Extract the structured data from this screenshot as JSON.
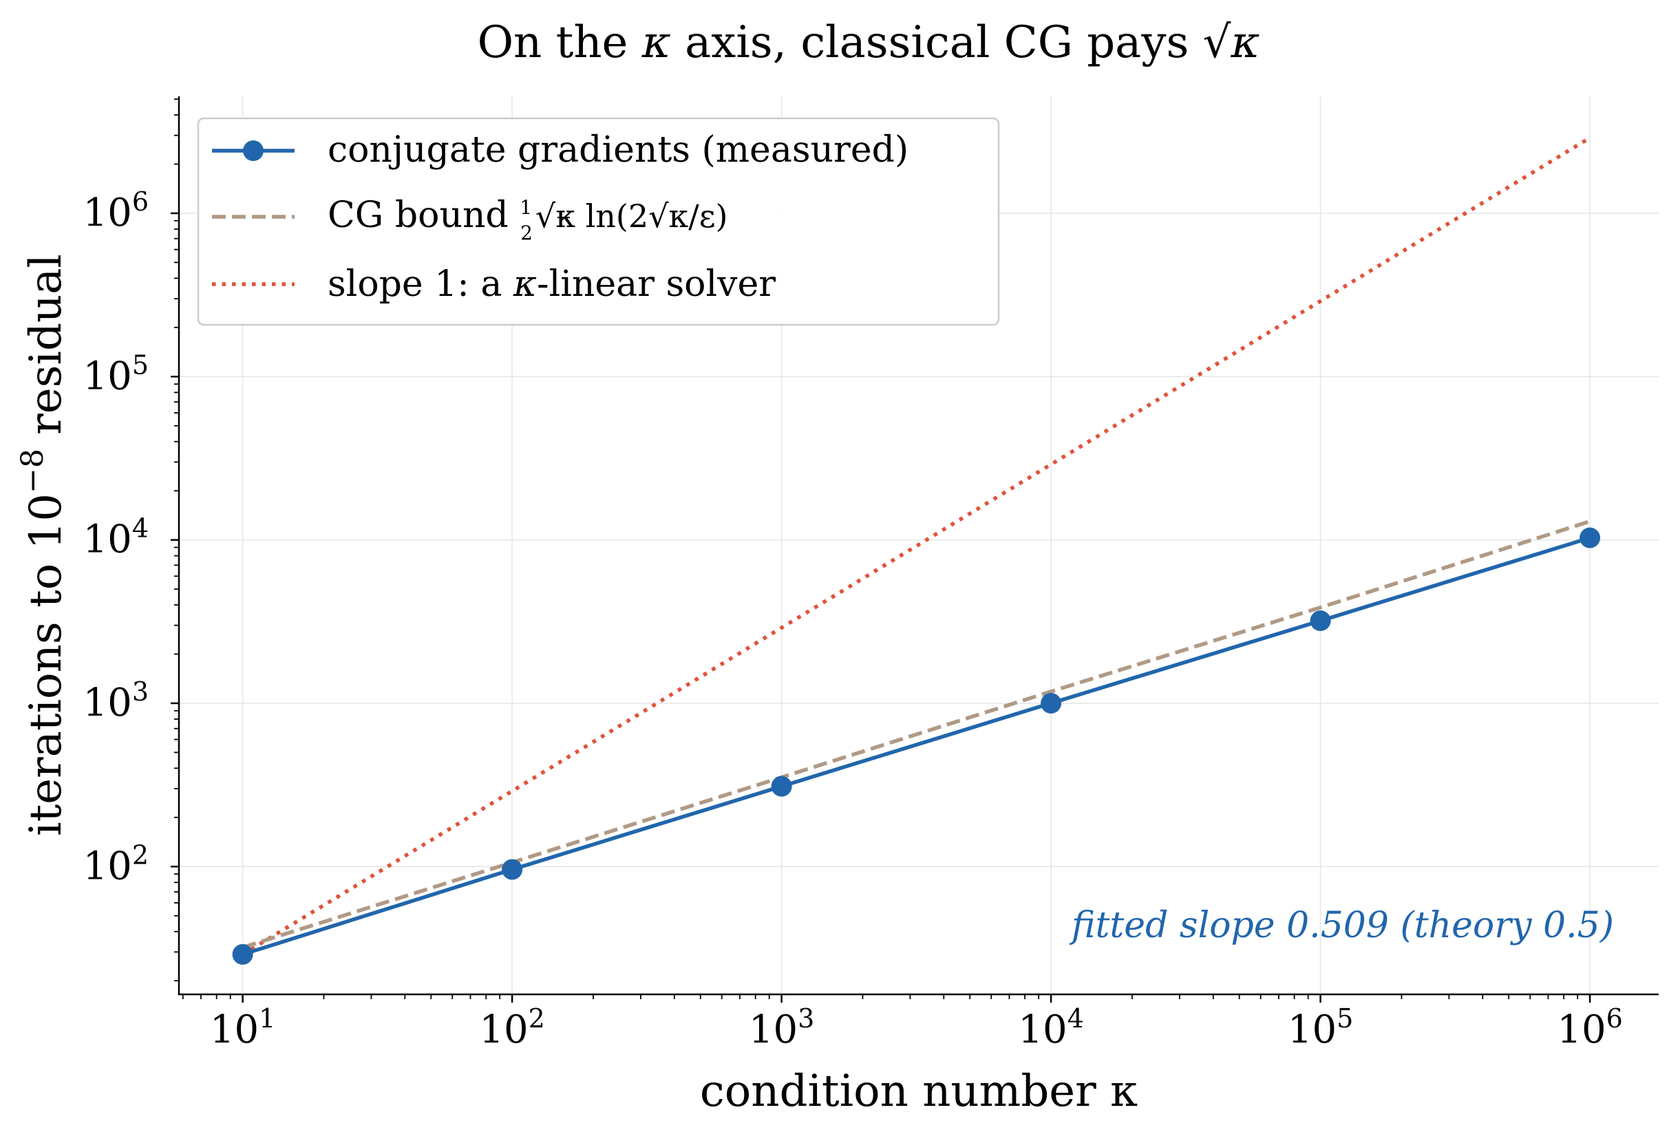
{
  "chart_data": {
    "type": "line",
    "title": {
      "prefix": "On the ",
      "kappa": "κ",
      "suffix": " axis, classical CG pays ",
      "sqrt_kappa": "√κ"
    },
    "xlabel": "condition number  κ",
    "ylabel": {
      "prefix": "iterations to 10",
      "exponent": "−8",
      "suffix": " residual"
    },
    "xscale": "log",
    "yscale": "log",
    "xlim": [
      5.8,
      1800000
    ],
    "ylim": [
      16.5,
      5200000
    ],
    "x_ticks": [
      {
        "value": 10,
        "base": "10",
        "exp": "1"
      },
      {
        "value": 100,
        "base": "10",
        "exp": "2"
      },
      {
        "value": 1000,
        "base": "10",
        "exp": "3"
      },
      {
        "value": 10000,
        "base": "10",
        "exp": "4"
      },
      {
        "value": 100000,
        "base": "10",
        "exp": "5"
      },
      {
        "value": 1000000,
        "base": "10",
        "exp": "6"
      }
    ],
    "y_ticks": [
      {
        "value": 100,
        "base": "10",
        "exp": "2"
      },
      {
        "value": 1000,
        "base": "10",
        "exp": "3"
      },
      {
        "value": 10000,
        "base": "10",
        "exp": "4"
      },
      {
        "value": 100000,
        "base": "10",
        "exp": "5"
      },
      {
        "value": 1000000,
        "base": "10",
        "exp": "6"
      }
    ],
    "grid": true,
    "legend_position": "top-left",
    "series": [
      {
        "name": "conjugate gradients (measured)",
        "style": "solid-markers",
        "color": "#2166ac",
        "x": [
          10,
          100,
          1000,
          10000,
          100000,
          1000000
        ],
        "y": [
          29,
          96,
          310,
          1000,
          3200,
          10300
        ]
      },
      {
        "name": "CG bound  ½√κ ln(2√κ/ε)",
        "legend_parts": {
          "lead": "CG bound  ",
          "num": "1",
          "den": "2",
          "formula": "√κ ln(2√κ/ε)"
        },
        "style": "dashed",
        "color": "#b09a85",
        "x": [
          10,
          100,
          1000,
          10000,
          100000,
          1000000
        ],
        "y": [
          32,
          106,
          352,
          1180,
          3860,
          13000
        ]
      },
      {
        "name": "slope 1: a κ-linear solver",
        "legend_parts": {
          "prefix": "slope 1: a ",
          "kappa": "κ",
          "suffix": "-linear solver"
        },
        "style": "dotted",
        "color": "#e0533a",
        "x": [
          10,
          1000000
        ],
        "y": [
          29,
          2900000
        ]
      }
    ],
    "annotation": "fitted slope 0.509  (theory 0.5)",
    "annotation_color": "#2166ac"
  }
}
